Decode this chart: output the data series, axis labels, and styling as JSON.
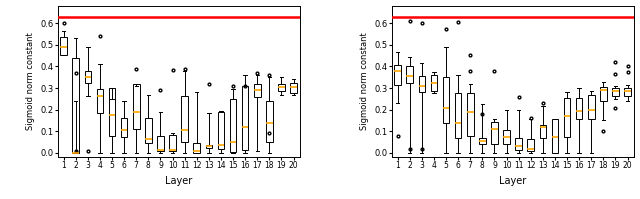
{
  "ylabel": "Sigmoid norm constant",
  "xlabel": "Layer",
  "red_line": 0.628,
  "ylim": [
    -0.02,
    0.68
  ],
  "left": {
    "medians": [
      0.49,
      0.0,
      0.35,
      0.265,
      0.175,
      0.105,
      0.19,
      0.065,
      0.015,
      0.015,
      0.105,
      0.01,
      0.032,
      0.035,
      0.05,
      0.12,
      0.29,
      0.14,
      0.305,
      0.305
    ],
    "q1": [
      0.455,
      0.0,
      0.325,
      0.185,
      0.08,
      0.075,
      0.11,
      0.048,
      0.01,
      0.008,
      0.05,
      0.0,
      0.022,
      0.02,
      0.004,
      0.015,
      0.26,
      0.05,
      0.285,
      0.275
    ],
    "q3": [
      0.535,
      0.44,
      0.38,
      0.295,
      0.3,
      0.16,
      0.32,
      0.16,
      0.08,
      0.085,
      0.265,
      0.045,
      0.035,
      0.19,
      0.25,
      0.31,
      0.32,
      0.24,
      0.32,
      0.325
    ],
    "whislo": [
      0.455,
      0.24,
      0.265,
      0.0,
      0.0,
      0.0,
      0.0,
      0.0,
      0.0,
      0.0,
      0.0,
      0.0,
      0.0,
      0.0,
      0.0,
      0.0,
      0.01,
      0.0,
      0.27,
      0.27
    ],
    "whishi": [
      0.565,
      0.53,
      0.49,
      0.41,
      0.25,
      0.24,
      0.31,
      0.27,
      0.19,
      0.09,
      0.38,
      0.28,
      0.185,
      0.195,
      0.295,
      0.36,
      0.36,
      0.35,
      0.35,
      0.34
    ],
    "fliers": [
      [
        0.6
      ],
      [
        0.01,
        0.37
      ],
      [
        0.01
      ],
      [
        0.54
      ],
      [],
      [],
      [
        0.39
      ],
      [],
      [
        0.29
      ],
      [
        0.385
      ],
      [
        0.39
      ],
      [],
      [
        0.32
      ],
      [],
      [
        0.31
      ],
      [
        0.31
      ],
      [
        0.37
      ],
      [
        0.36,
        0.09
      ],
      [],
      []
    ]
  },
  "right": {
    "medians": [
      0.38,
      0.355,
      0.31,
      0.325,
      0.21,
      0.14,
      0.19,
      0.055,
      0.11,
      0.075,
      0.03,
      0.02,
      0.12,
      0.075,
      0.17,
      0.195,
      0.2,
      0.29,
      0.285,
      0.285
    ],
    "q1": [
      0.315,
      0.325,
      0.28,
      0.285,
      0.14,
      0.07,
      0.08,
      0.04,
      0.04,
      0.04,
      0.015,
      0.01,
      0.07,
      0.0,
      0.075,
      0.155,
      0.155,
      0.24,
      0.265,
      0.265
    ],
    "q3": [
      0.405,
      0.4,
      0.355,
      0.36,
      0.35,
      0.275,
      0.275,
      0.07,
      0.145,
      0.105,
      0.07,
      0.065,
      0.13,
      0.155,
      0.255,
      0.255,
      0.27,
      0.305,
      0.3,
      0.3
    ],
    "whislo": [
      0.23,
      0.0,
      0.0,
      0.275,
      0.0,
      0.0,
      0.0,
      0.0,
      0.0,
      0.0,
      0.0,
      0.0,
      0.0,
      0.0,
      0.0,
      0.0,
      0.0,
      0.15,
      0.25,
      0.24
    ],
    "whishi": [
      0.465,
      0.445,
      0.415,
      0.375,
      0.49,
      0.36,
      0.32,
      0.225,
      0.155,
      0.2,
      0.2,
      0.155,
      0.215,
      0.155,
      0.28,
      0.3,
      0.285,
      0.33,
      0.31,
      0.315
    ],
    "fliers": [
      [
        0.08
      ],
      [
        0.61,
        0.02
      ],
      [
        0.6,
        0.02
      ],
      [],
      [
        0.575
      ],
      [
        0.605
      ],
      [
        0.455,
        0.38
      ],
      [
        0.18
      ],
      [
        0.38
      ],
      [],
      [
        0.26
      ],
      [
        0.16
      ],
      [
        0.23
      ],
      [],
      [],
      [],
      [],
      [
        0.1
      ],
      [
        0.365,
        0.21,
        0.42
      ],
      [
        0.375,
        0.4
      ]
    ]
  }
}
